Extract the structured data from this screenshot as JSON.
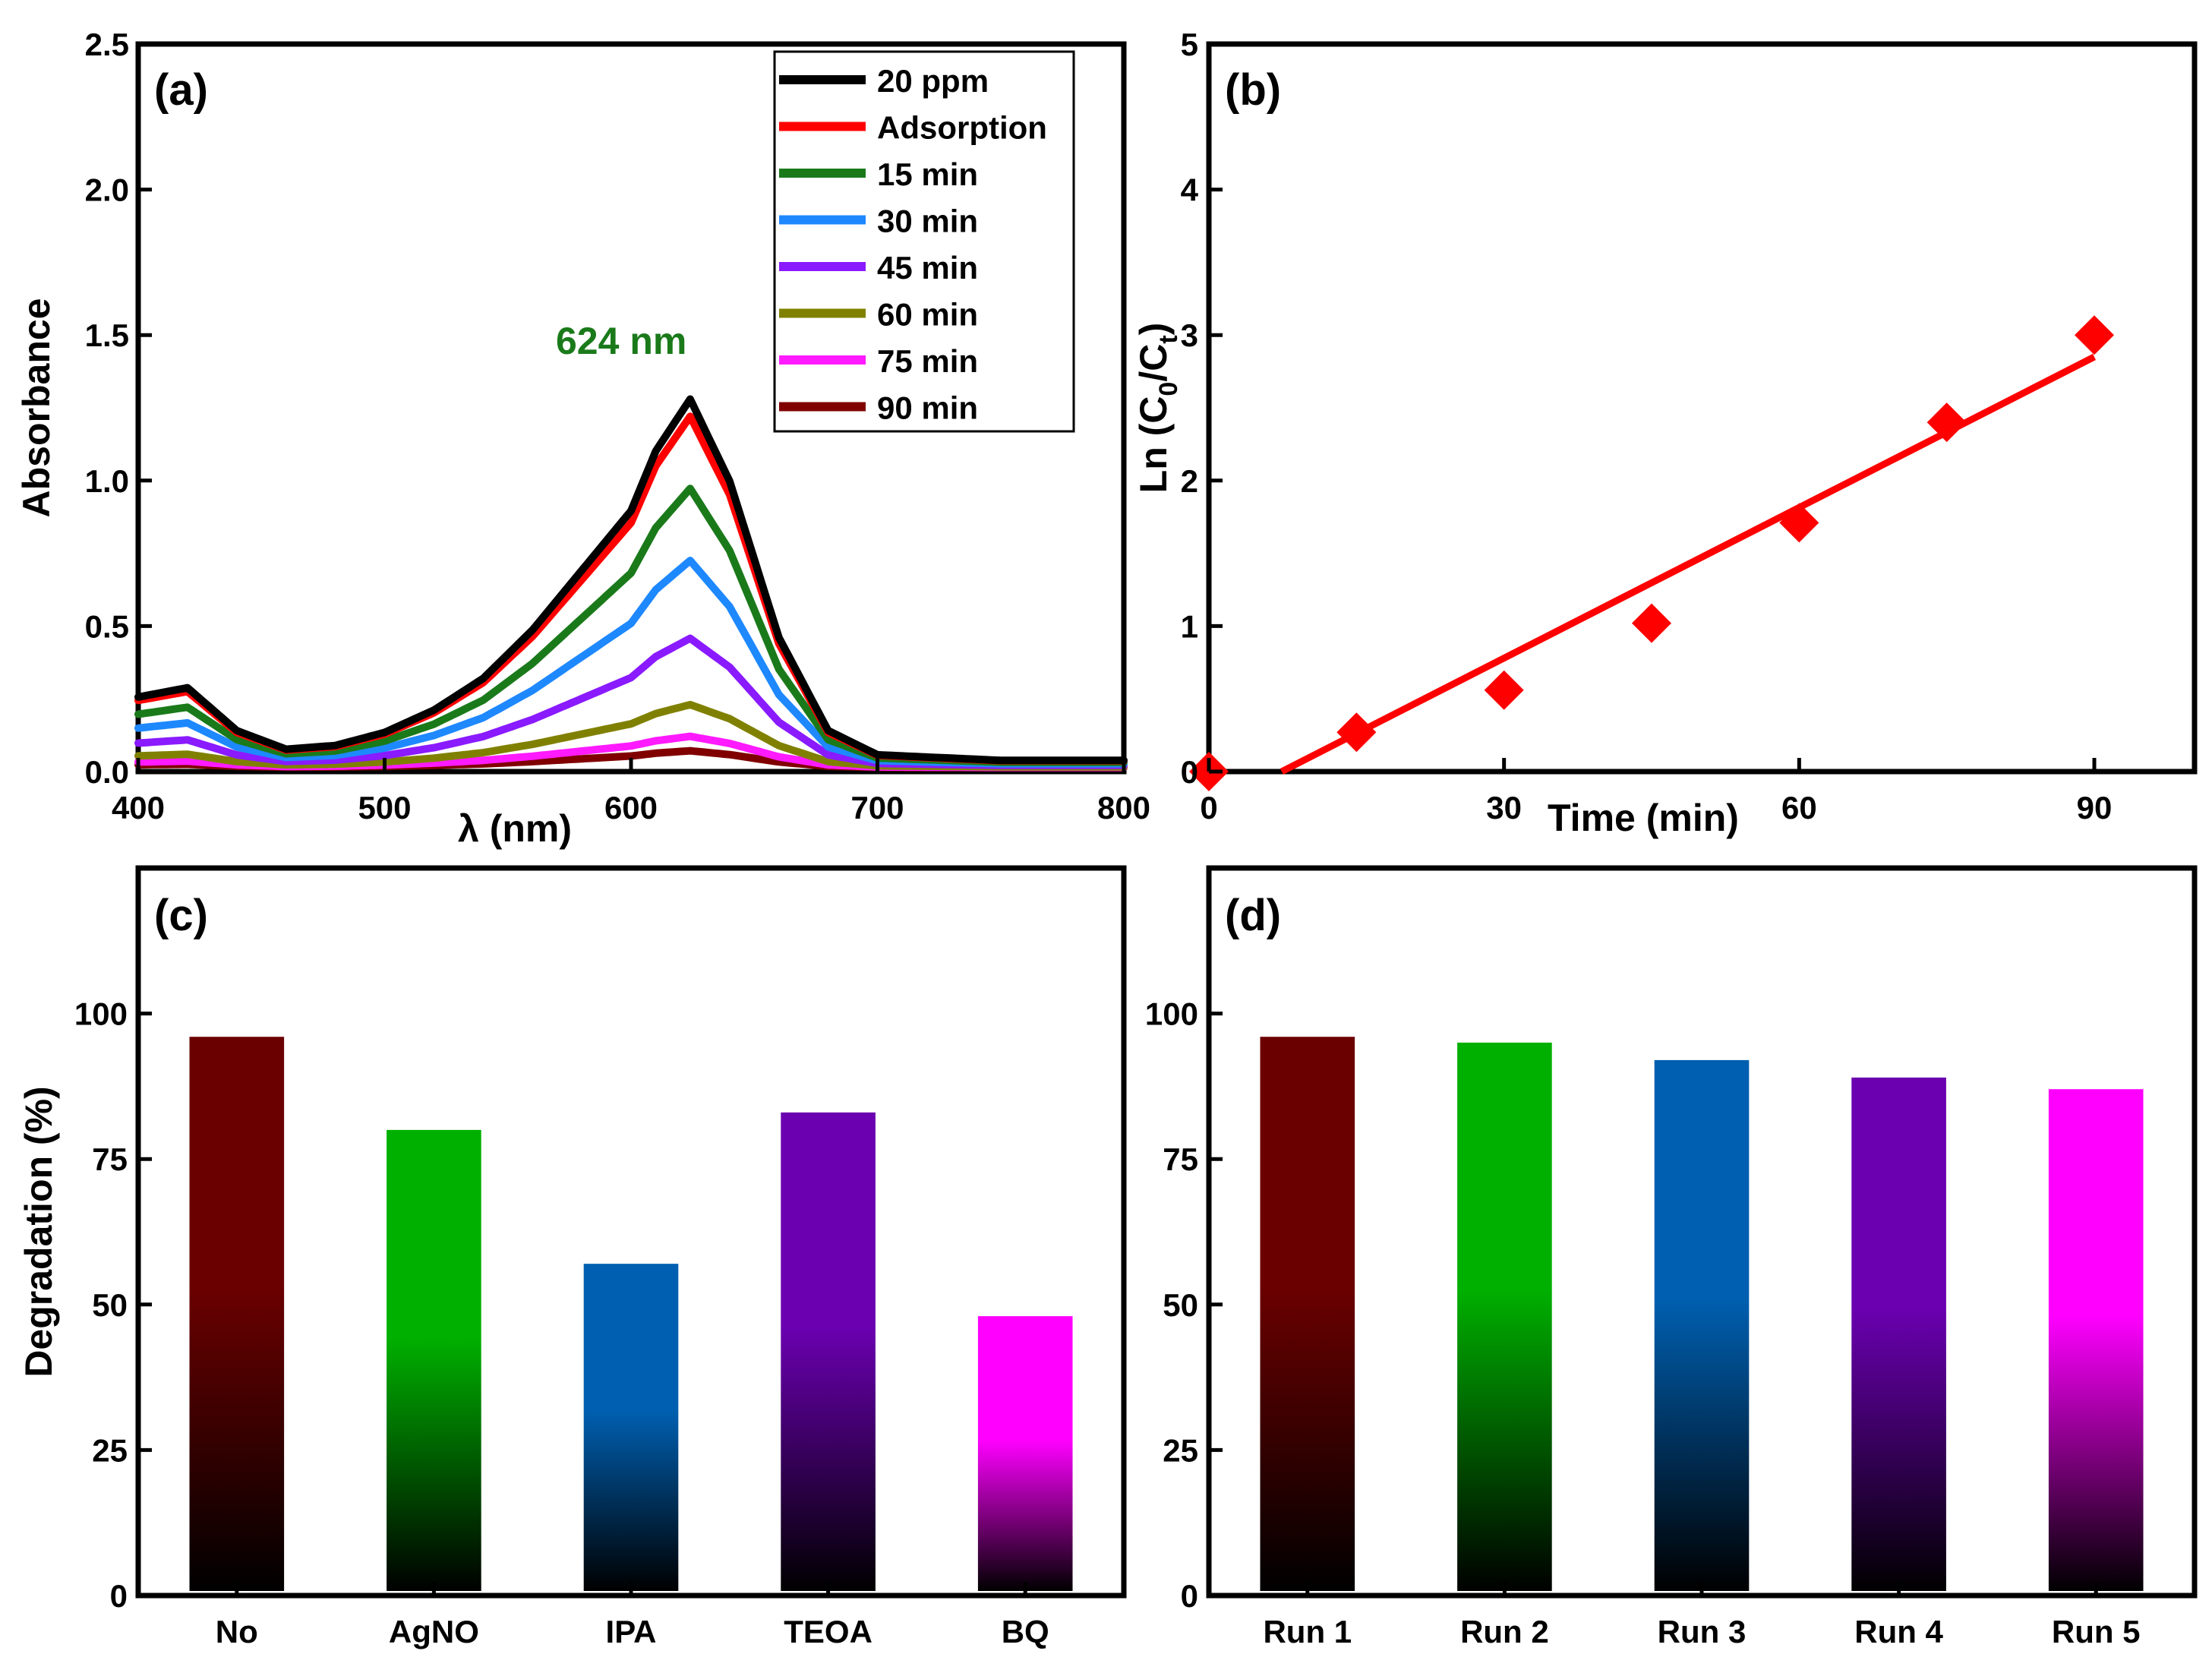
{
  "chart_data": [
    {
      "type": "line",
      "panel_label": "(a)",
      "xlabel": "λ (nm)",
      "ylabel": "Absorbance",
      "xlim": [
        400,
        800
      ],
      "ylim": [
        0,
        2.5
      ],
      "xticks": [
        "400",
        "500",
        "600",
        "700",
        "800"
      ],
      "yticks": [
        "0.0",
        "0.5",
        "1.0",
        "1.5",
        "2.0",
        "2.5"
      ],
      "annotation": "624 nm",
      "annotation_color": "#1a7a1a",
      "x": [
        400,
        420,
        440,
        460,
        480,
        500,
        520,
        540,
        560,
        580,
        600,
        610,
        624,
        640,
        660,
        680,
        700,
        750,
        800
      ],
      "base_shape": [
        0.2,
        0.225,
        0.11,
        0.06,
        0.07,
        0.105,
        0.165,
        0.25,
        0.38,
        0.54,
        0.7,
        0.86,
        1.0,
        0.78,
        0.36,
        0.11,
        0.045,
        0.03,
        0.03
      ],
      "series": [
        {
          "name": "20 ppm",
          "color": "#000000",
          "peak": 1.28
        },
        {
          "name": "Adsorption",
          "color": "#ff0000",
          "peak": 1.22
        },
        {
          "name": "15 min",
          "color": "#1a7a1a",
          "peak": 0.97
        },
        {
          "name": "30 min",
          "color": "#1e88ff",
          "peak": 0.72
        },
        {
          "name": "45 min",
          "color": "#8a1aff",
          "peak": 0.45
        },
        {
          "name": "60 min",
          "color": "#808000",
          "peak": 0.22
        },
        {
          "name": "75 min",
          "color": "#ff1aff",
          "peak": 0.11
        },
        {
          "name": "90 min",
          "color": "#800000",
          "peak": 0.06
        }
      ]
    },
    {
      "type": "scatter",
      "panel_label": "(b)",
      "xlabel": "Time (min)",
      "ylabel": "Ln (C0/Ct)",
      "xlim": [
        0,
        100
      ],
      "ylim": [
        0,
        5
      ],
      "xticks": [
        "0",
        "30",
        "60",
        "90"
      ],
      "xtick_values": [
        0,
        30,
        60,
        90
      ],
      "yticks": [
        "0",
        "1",
        "2",
        "3",
        "4",
        "5"
      ],
      "marker_color": "#ff0000",
      "points": [
        [
          0,
          0.0
        ],
        [
          15,
          0.27
        ],
        [
          30,
          0.56
        ],
        [
          45,
          1.02
        ],
        [
          60,
          1.71
        ],
        [
          75,
          2.4
        ],
        [
          90,
          3.0
        ]
      ],
      "fit_line": [
        [
          7.4,
          0.0
        ],
        [
          90,
          2.85
        ]
      ]
    },
    {
      "type": "bar",
      "panel_label": "(c)",
      "ylabel": "Degradation (%)",
      "ylim": [
        0,
        125
      ],
      "yticks": [
        "0",
        "25",
        "50",
        "75",
        "100"
      ],
      "categories": [
        "No",
        "AgNO",
        "IPA",
        "TEOA",
        "BQ"
      ],
      "values": [
        96,
        80,
        57,
        83,
        48
      ],
      "colors": [
        "#6b0000",
        "#00b000",
        "#005fb0",
        "#6a00b0",
        "#ff00ff"
      ]
    },
    {
      "type": "bar",
      "panel_label": "(d)",
      "ylabel": "",
      "ylim": [
        0,
        125
      ],
      "yticks": [
        "0",
        "25",
        "50",
        "75",
        "100"
      ],
      "categories": [
        "Run 1",
        "Run 2",
        "Run 3",
        "Run 4",
        "Run 5"
      ],
      "values": [
        96,
        95,
        92,
        89,
        87
      ],
      "colors": [
        "#6b0000",
        "#00b000",
        "#005fb0",
        "#6a00b0",
        "#ff00ff"
      ]
    }
  ]
}
